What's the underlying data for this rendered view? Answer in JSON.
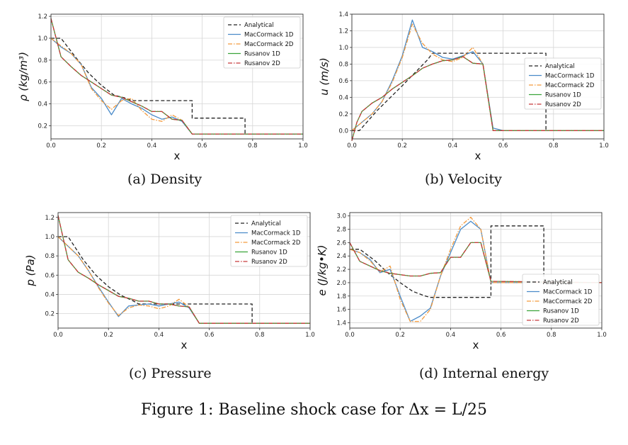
{
  "colors": {
    "analytical": "#222222",
    "maccormack_1d": "#4a8bc9",
    "maccormack_2d": "#f39a3c",
    "rusanov_1d": "#3aa43a",
    "rusanov_2d": "#c8393b"
  },
  "figure_caption": "Figure 1: Baseline shock case for Δx = L/25",
  "chart_data": [
    {
      "type": "line",
      "caption": "(a) Density",
      "xlabel": "x",
      "ylabel": "ρ (kg/m³)",
      "xlim": [
        0,
        1.0
      ],
      "ylim": [
        0.08,
        1.22
      ],
      "xticks": [
        "0.0",
        "0.2",
        "0.4",
        "0.6",
        "0.8",
        "1.0"
      ],
      "yticks": [
        "0.2",
        "0.4",
        "0.6",
        "0.8",
        "1.0",
        "1.2"
      ],
      "grid": true,
      "legend_position": "top-right",
      "series": [
        {
          "name": "Analytical",
          "style": "dashed",
          "color_key": "analytical",
          "x": [
            0,
            0.04,
            0.1,
            0.15,
            0.2,
            0.25,
            0.3,
            0.32,
            0.34,
            0.56,
            0.56,
            0.77,
            0.77,
            1.0
          ],
          "y": [
            1.0,
            1.0,
            0.82,
            0.68,
            0.57,
            0.48,
            0.45,
            0.43,
            0.43,
            0.43,
            0.27,
            0.27,
            0.125,
            0.125
          ]
        },
        {
          "name": "MacCormack 1D",
          "style": "solid",
          "color_key": "maccormack_1d",
          "x": [
            0,
            0.04,
            0.08,
            0.12,
            0.16,
            0.2,
            0.24,
            0.28,
            0.32,
            0.36,
            0.4,
            0.44,
            0.48,
            0.52,
            0.56,
            1.0
          ],
          "y": [
            1.0,
            0.92,
            0.86,
            0.76,
            0.55,
            0.45,
            0.3,
            0.45,
            0.4,
            0.36,
            0.3,
            0.26,
            0.28,
            0.24,
            0.125,
            0.125
          ]
        },
        {
          "name": "MacCormack 2D",
          "style": "dashdot",
          "color_key": "maccormack_2d",
          "x": [
            0,
            0.04,
            0.08,
            0.12,
            0.16,
            0.2,
            0.24,
            0.28,
            0.32,
            0.36,
            0.4,
            0.44,
            0.48,
            0.52,
            0.56,
            1.0
          ],
          "y": [
            1.0,
            0.93,
            0.86,
            0.76,
            0.54,
            0.43,
            0.35,
            0.43,
            0.45,
            0.34,
            0.26,
            0.24,
            0.3,
            0.25,
            0.125,
            0.125
          ]
        },
        {
          "name": "Rusanov 1D",
          "style": "solid",
          "color_key": "rusanov_1d",
          "x": [
            0,
            0.04,
            0.08,
            0.12,
            0.16,
            0.2,
            0.24,
            0.28,
            0.32,
            0.36,
            0.4,
            0.44,
            0.48,
            0.52,
            0.56,
            1.0
          ],
          "y": [
            1.18,
            0.83,
            0.74,
            0.66,
            0.6,
            0.54,
            0.48,
            0.46,
            0.42,
            0.38,
            0.33,
            0.33,
            0.26,
            0.25,
            0.125,
            0.125
          ]
        },
        {
          "name": "Rusanov 2D",
          "style": "dashdot",
          "color_key": "rusanov_2d",
          "x": [
            0,
            0.04,
            0.08,
            0.12,
            0.16,
            0.2,
            0.24,
            0.28,
            0.32,
            0.36,
            0.4,
            0.44,
            0.48,
            0.52,
            0.56,
            1.0
          ],
          "y": [
            1.18,
            0.83,
            0.74,
            0.66,
            0.6,
            0.54,
            0.48,
            0.46,
            0.42,
            0.38,
            0.33,
            0.33,
            0.26,
            0.25,
            0.125,
            0.125
          ]
        }
      ]
    },
    {
      "type": "line",
      "caption": "(b) Velocity",
      "xlabel": "x",
      "ylabel": "u (m/s)",
      "xlim": [
        0,
        1.0
      ],
      "ylim": [
        -0.1,
        1.4
      ],
      "xticks": [
        "0.0",
        "0.2",
        "0.4",
        "0.6",
        "0.8",
        "1.0"
      ],
      "yticks": [
        "0.0",
        "0.2",
        "0.4",
        "0.6",
        "0.8",
        "1.0",
        "1.2",
        "1.4"
      ],
      "grid": true,
      "legend_position": "center-right",
      "series": [
        {
          "name": "Analytical",
          "style": "dashed",
          "color_key": "analytical",
          "x": [
            0,
            0.03,
            0.1,
            0.2,
            0.3,
            0.32,
            0.77,
            0.77,
            1.0
          ],
          "y": [
            0.0,
            0.0,
            0.24,
            0.54,
            0.85,
            0.93,
            0.93,
            0.0,
            0.0
          ]
        },
        {
          "name": "MacCormack 1D",
          "style": "solid",
          "color_key": "maccormack_1d",
          "x": [
            0,
            0.04,
            0.08,
            0.12,
            0.16,
            0.2,
            0.24,
            0.28,
            0.32,
            0.36,
            0.4,
            0.44,
            0.48,
            0.52,
            0.56,
            0.6,
            1.0
          ],
          "y": [
            0.0,
            0.1,
            0.2,
            0.35,
            0.6,
            0.9,
            1.33,
            1.0,
            0.95,
            0.88,
            0.86,
            0.9,
            0.95,
            0.8,
            0.03,
            0.0,
            0.0
          ]
        },
        {
          "name": "MacCormack 2D",
          "style": "dashdot",
          "color_key": "maccormack_2d",
          "x": [
            0,
            0.04,
            0.08,
            0.12,
            0.16,
            0.2,
            0.24,
            0.28,
            0.32,
            0.36,
            0.4,
            0.44,
            0.48,
            0.52,
            0.56,
            0.6,
            1.0
          ],
          "y": [
            0.0,
            0.1,
            0.2,
            0.35,
            0.58,
            0.88,
            1.28,
            1.05,
            0.92,
            0.85,
            0.83,
            0.88,
            1.0,
            0.8,
            0.0,
            0.0,
            0.0
          ]
        },
        {
          "name": "Rusanov 1D",
          "style": "solid",
          "color_key": "rusanov_1d",
          "x": [
            0,
            0.02,
            0.04,
            0.08,
            0.12,
            0.16,
            0.2,
            0.24,
            0.28,
            0.32,
            0.36,
            0.4,
            0.44,
            0.48,
            0.52,
            0.56,
            1.0
          ],
          "y": [
            -0.12,
            0.1,
            0.23,
            0.33,
            0.4,
            0.5,
            0.58,
            0.66,
            0.75,
            0.8,
            0.84,
            0.85,
            0.89,
            0.81,
            0.8,
            0.0,
            0.0
          ]
        },
        {
          "name": "Rusanov 2D",
          "style": "dashdot",
          "color_key": "rusanov_2d",
          "x": [
            0,
            0.02,
            0.04,
            0.08,
            0.12,
            0.16,
            0.2,
            0.24,
            0.28,
            0.32,
            0.36,
            0.4,
            0.44,
            0.48,
            0.52,
            0.56,
            1.0
          ],
          "y": [
            -0.12,
            0.1,
            0.23,
            0.33,
            0.4,
            0.5,
            0.58,
            0.66,
            0.75,
            0.8,
            0.84,
            0.85,
            0.89,
            0.81,
            0.8,
            0.0,
            0.0
          ]
        }
      ]
    },
    {
      "type": "line",
      "caption": "(c) Pressure",
      "xlabel": "x",
      "ylabel": "p (Pa)",
      "xlim": [
        0,
        1.0
      ],
      "ylim": [
        0.05,
        1.25
      ],
      "xticks": [
        "0.0",
        "0.2",
        "0.4",
        "0.6",
        "0.8",
        "1.0"
      ],
      "yticks": [
        "0.2",
        "0.4",
        "0.6",
        "0.8",
        "1.0",
        "1.2"
      ],
      "grid": true,
      "legend_position": "top-right",
      "series": [
        {
          "name": "Analytical",
          "style": "dashed",
          "color_key": "analytical",
          "x": [
            0,
            0.04,
            0.1,
            0.15,
            0.2,
            0.25,
            0.3,
            0.32,
            0.77,
            0.77,
            1.0
          ],
          "y": [
            1.0,
            1.0,
            0.76,
            0.6,
            0.48,
            0.39,
            0.33,
            0.3,
            0.3,
            0.1,
            0.1
          ]
        },
        {
          "name": "MacCormack 1D",
          "style": "solid",
          "color_key": "maccormack_1d",
          "x": [
            0,
            0.04,
            0.08,
            0.12,
            0.16,
            0.2,
            0.24,
            0.28,
            0.32,
            0.36,
            0.4,
            0.44,
            0.48,
            0.52,
            0.56,
            1.0
          ],
          "y": [
            1.0,
            0.9,
            0.8,
            0.65,
            0.48,
            0.32,
            0.17,
            0.28,
            0.29,
            0.3,
            0.28,
            0.3,
            0.32,
            0.26,
            0.1,
            0.1
          ]
        },
        {
          "name": "MacCormack 2D",
          "style": "dashdot",
          "color_key": "maccormack_2d",
          "x": [
            0,
            0.04,
            0.08,
            0.12,
            0.16,
            0.2,
            0.24,
            0.28,
            0.32,
            0.36,
            0.4,
            0.44,
            0.48,
            0.52,
            0.56,
            1.0
          ],
          "y": [
            1.0,
            0.9,
            0.8,
            0.65,
            0.47,
            0.31,
            0.18,
            0.26,
            0.29,
            0.28,
            0.25,
            0.28,
            0.35,
            0.27,
            0.1,
            0.1
          ]
        },
        {
          "name": "Rusanov 1D",
          "style": "solid",
          "color_key": "rusanov_1d",
          "x": [
            0,
            0.04,
            0.08,
            0.12,
            0.16,
            0.2,
            0.24,
            0.28,
            0.32,
            0.36,
            0.4,
            0.44,
            0.48,
            0.52,
            0.56,
            1.0
          ],
          "y": [
            1.22,
            0.76,
            0.63,
            0.57,
            0.5,
            0.44,
            0.38,
            0.36,
            0.33,
            0.33,
            0.3,
            0.3,
            0.28,
            0.27,
            0.1,
            0.1
          ]
        },
        {
          "name": "Rusanov 2D",
          "style": "dashdot",
          "color_key": "rusanov_2d",
          "x": [
            0,
            0.04,
            0.08,
            0.12,
            0.16,
            0.2,
            0.24,
            0.28,
            0.32,
            0.36,
            0.4,
            0.44,
            0.48,
            0.52,
            0.56,
            1.0
          ],
          "y": [
            1.22,
            0.76,
            0.63,
            0.57,
            0.5,
            0.44,
            0.38,
            0.36,
            0.33,
            0.33,
            0.3,
            0.3,
            0.28,
            0.27,
            0.1,
            0.1
          ]
        }
      ]
    },
    {
      "type": "line",
      "caption": "(d) Internal energy",
      "xlabel": "x",
      "ylabel": "e (J/kg•K)",
      "xlim": [
        0,
        1.0
      ],
      "ylim": [
        1.32,
        3.05
      ],
      "xticks": [
        "0.0",
        "0.2",
        "0.4",
        "0.6",
        "0.8",
        "1.0"
      ],
      "yticks": [
        "1.4",
        "1.6",
        "1.8",
        "2.0",
        "2.2",
        "2.4",
        "2.6",
        "2.8",
        "3.0"
      ],
      "grid": true,
      "legend_position": "bottom-right",
      "series": [
        {
          "name": "Analytical",
          "style": "dashed",
          "color_key": "analytical",
          "x": [
            0,
            0.04,
            0.1,
            0.15,
            0.2,
            0.25,
            0.3,
            0.32,
            0.56,
            0.56,
            0.77,
            0.77,
            1.0
          ],
          "y": [
            2.5,
            2.5,
            2.33,
            2.15,
            2.0,
            1.87,
            1.8,
            1.78,
            1.78,
            2.85,
            2.85,
            2.0,
            2.0
          ]
        },
        {
          "name": "MacCormack 1D",
          "style": "solid",
          "color_key": "maccormack_1d",
          "x": [
            0,
            0.04,
            0.08,
            0.12,
            0.16,
            0.2,
            0.24,
            0.28,
            0.32,
            0.36,
            0.4,
            0.44,
            0.48,
            0.52,
            0.56,
            1.0
          ],
          "y": [
            2.5,
            2.45,
            2.35,
            2.15,
            2.2,
            1.8,
            1.42,
            1.5,
            1.62,
            2.1,
            2.45,
            2.8,
            2.92,
            2.8,
            2.0,
            2.0
          ]
        },
        {
          "name": "MacCormack 2D",
          "style": "dashdot",
          "color_key": "maccormack_2d",
          "x": [
            0,
            0.04,
            0.08,
            0.12,
            0.16,
            0.2,
            0.24,
            0.28,
            0.32,
            0.36,
            0.4,
            0.44,
            0.48,
            0.52,
            0.56,
            1.0
          ],
          "y": [
            2.5,
            2.45,
            2.33,
            2.16,
            2.25,
            1.75,
            1.42,
            1.42,
            1.6,
            2.1,
            2.5,
            2.85,
            2.98,
            2.8,
            2.0,
            2.0
          ]
        },
        {
          "name": "Rusanov 1D",
          "style": "solid",
          "color_key": "rusanov_1d",
          "x": [
            0,
            0.04,
            0.08,
            0.12,
            0.16,
            0.2,
            0.24,
            0.28,
            0.32,
            0.36,
            0.4,
            0.44,
            0.48,
            0.52,
            0.56,
            1.0
          ],
          "y": [
            2.6,
            2.32,
            2.25,
            2.18,
            2.14,
            2.12,
            2.1,
            2.1,
            2.14,
            2.15,
            2.38,
            2.38,
            2.6,
            2.6,
            2.02,
            2.0
          ]
        },
        {
          "name": "Rusanov 2D",
          "style": "dashdot",
          "color_key": "rusanov_2d",
          "x": [
            0,
            0.04,
            0.08,
            0.12,
            0.16,
            0.2,
            0.24,
            0.28,
            0.32,
            0.36,
            0.4,
            0.44,
            0.48,
            0.52,
            0.56,
            1.0
          ],
          "y": [
            2.6,
            2.32,
            2.25,
            2.18,
            2.14,
            2.12,
            2.1,
            2.1,
            2.14,
            2.15,
            2.38,
            2.38,
            2.6,
            2.6,
            2.02,
            2.0
          ]
        }
      ]
    }
  ]
}
